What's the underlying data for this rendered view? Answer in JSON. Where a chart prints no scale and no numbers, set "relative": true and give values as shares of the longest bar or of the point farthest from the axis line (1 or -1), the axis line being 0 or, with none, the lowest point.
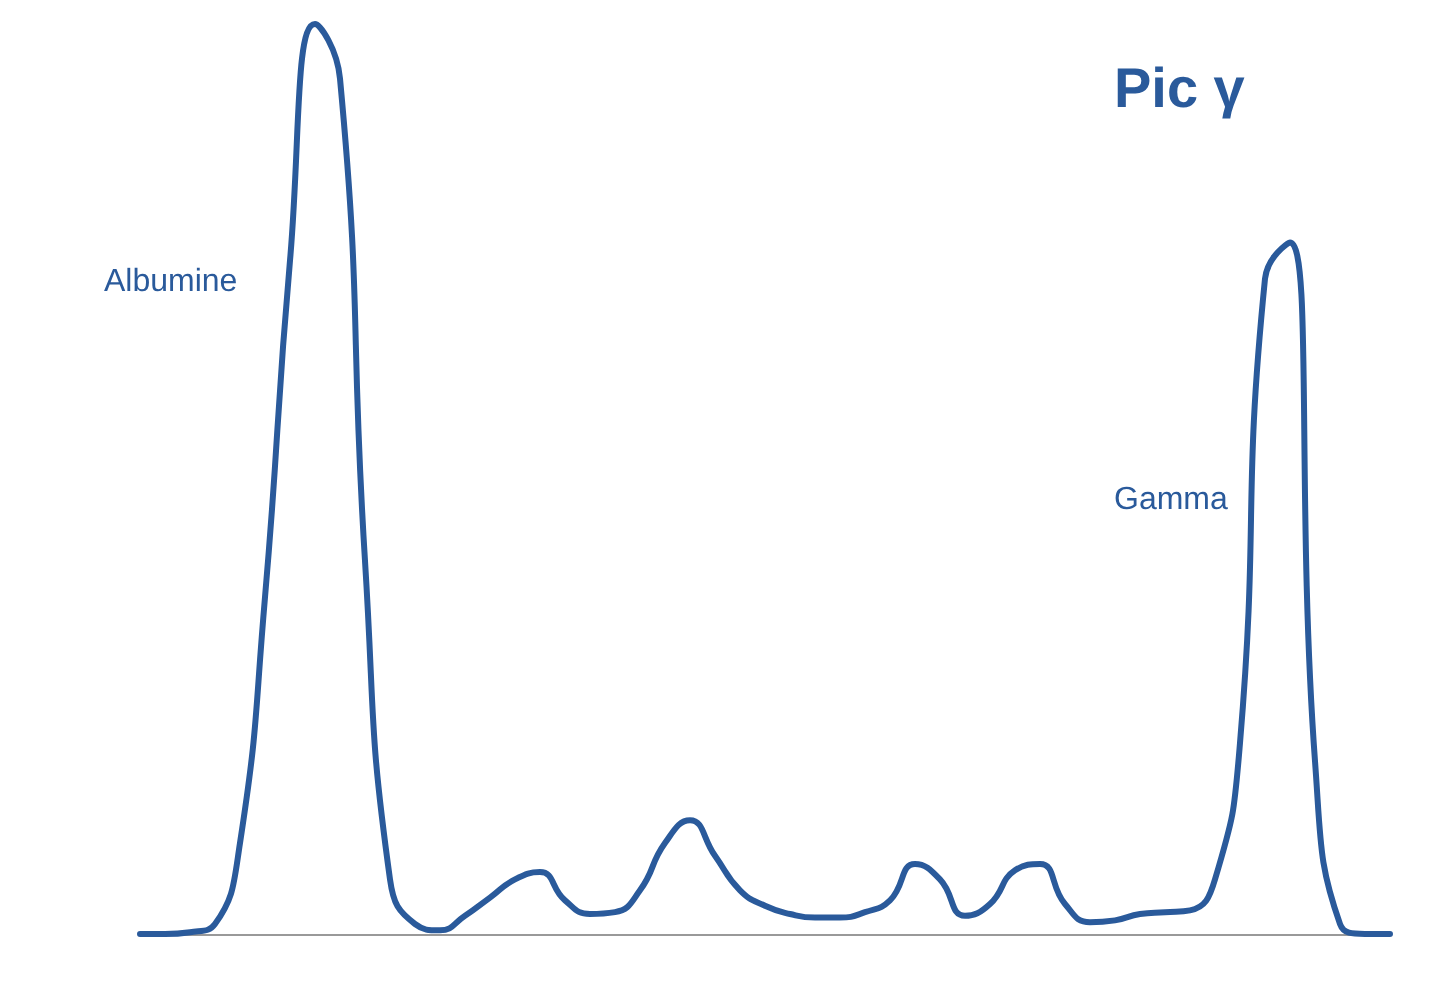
{
  "chart_data": {
    "type": "line",
    "relative": true,
    "color": "#2a5a9b",
    "grid": false,
    "marker": "none",
    "line_style": "solid",
    "categories": [
      null,
      null,
      null,
      null,
      null,
      null,
      null,
      null,
      null,
      null,
      null,
      null,
      null,
      null,
      null,
      null,
      null,
      null,
      null,
      null,
      null,
      null,
      null,
      null,
      null,
      null,
      null,
      null,
      null,
      null,
      null,
      null,
      null,
      null,
      null,
      null,
      null,
      null,
      null,
      null,
      null,
      null,
      null,
      null,
      null,
      null,
      null,
      null,
      null,
      null,
      null
    ],
    "values": [
      0,
      0,
      0.002,
      0.011,
      0.1,
      0.37,
      0.74,
      1,
      0.94,
      0.41,
      0.06,
      0.011,
      0.004,
      0.02,
      0.04,
      0.06,
      0.068,
      0.037,
      0.022,
      0.024,
      0.048,
      0.1,
      0.125,
      0.086,
      0.048,
      0.031,
      0.022,
      0.018,
      0.018,
      0.024,
      0.037,
      0.077,
      0.06,
      0.02,
      0.033,
      0.07,
      0.077,
      0.033,
      0.013,
      0.015,
      0.022,
      0.024,
      0.026,
      0.06,
      0.21,
      0.72,
      0.76,
      0.19,
      0.011,
      0,
      0
    ],
    "annotations": [
      "Albumine",
      "Gamma",
      "Pic γ"
    ]
  }
}
